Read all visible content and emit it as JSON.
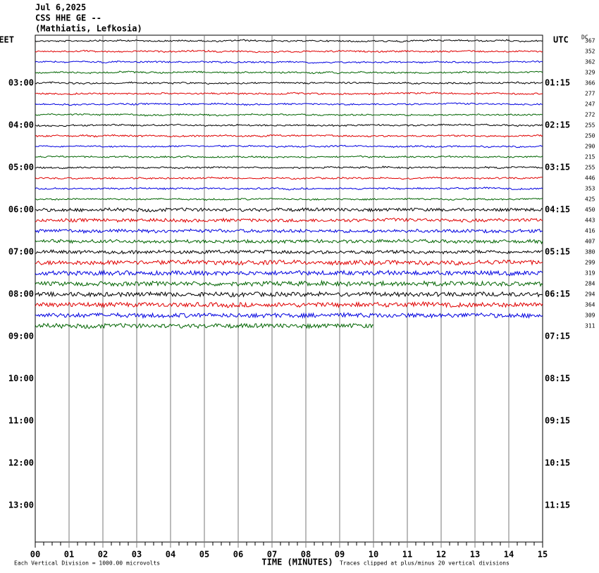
{
  "chart_data": {
    "type": "helicorder",
    "title_lines": [
      "Jul 6,2025",
      "CSS HHE GE --",
      "(Mathiatis, Lefkosia)"
    ],
    "left_zone": "EET",
    "right_zone": "UTC",
    "dc_label": "DC",
    "left_hours": [
      "03:00",
      "04:00",
      "05:00",
      "06:00",
      "07:00",
      "08:00",
      "09:00",
      "10:00",
      "11:00",
      "12:00",
      "13:00"
    ],
    "right_hours": [
      "01:15",
      "02:15",
      "03:15",
      "04:15",
      "05:15",
      "06:15",
      "07:15",
      "08:15",
      "09:15",
      "10:15",
      "11:15"
    ],
    "dc_offsets": [
      367,
      352,
      362,
      329,
      366,
      277,
      247,
      272,
      255,
      250,
      290,
      215,
      255,
      446,
      353,
      425,
      450,
      443,
      416,
      407,
      380,
      299,
      319,
      284,
      294,
      364,
      309,
      311
    ],
    "trace_colors": [
      "#000000",
      "#e00000",
      "#0000e0",
      "#006400"
    ],
    "last_trace_end": 10,
    "xlabel": "TIME (MINUTES)",
    "xlim": [
      0,
      15
    ],
    "xticks": [
      {
        "value": 0,
        "label": "00"
      },
      {
        "value": 1,
        "label": "01"
      },
      {
        "value": 2,
        "label": "02"
      },
      {
        "value": 3,
        "label": "03"
      },
      {
        "value": 4,
        "label": "04"
      },
      {
        "value": 5,
        "label": "05"
      },
      {
        "value": 6,
        "label": "06"
      },
      {
        "value": 7,
        "label": "07"
      },
      {
        "value": 8,
        "label": "08"
      },
      {
        "value": 9,
        "label": "09"
      },
      {
        "value": 10,
        "label": "10"
      },
      {
        "value": 11,
        "label": "11"
      },
      {
        "value": 12,
        "label": "12"
      },
      {
        "value": 13,
        "label": "13"
      },
      {
        "value": 14,
        "label": "14"
      },
      {
        "value": 15,
        "label": "15"
      }
    ],
    "footnote_left": "Each Vertical Division = 1000.00 microvolts",
    "footnote_right": "Traces clipped at plus/minus 20 vertical divisions"
  }
}
